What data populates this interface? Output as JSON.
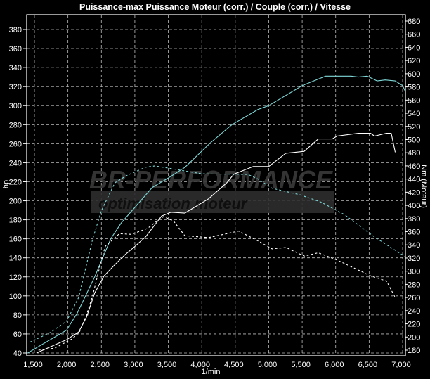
{
  "chart_data": {
    "type": "line",
    "title": "Puissance-max Puissance Moteur (corr.) / Couple (corr.) / Vitesse",
    "xlabel": "1/min",
    "ylabel": "hp",
    "y2label": "Nm (Moteur)",
    "xlim": [
      1500,
      7000
    ],
    "ylim": [
      40,
      380
    ],
    "y2lim": [
      180,
      680
    ],
    "grid": true,
    "x_ticks": [
      "1,500",
      "2,000",
      "2,500",
      "3,000",
      "3,500",
      "4,000",
      "4,500",
      "5,000",
      "5,500",
      "6,000",
      "6,500",
      "7,000"
    ],
    "y_ticks": [
      "40",
      "60",
      "80",
      "100",
      "120",
      "140",
      "160",
      "180",
      "200",
      "220",
      "240",
      "260",
      "280",
      "300",
      "320",
      "340",
      "360",
      "380"
    ],
    "y2_ticks": [
      "180",
      "200",
      "220",
      "240",
      "260",
      "280",
      "300",
      "320",
      "340",
      "360",
      "380",
      "400",
      "420",
      "440",
      "460",
      "480",
      "500",
      "520",
      "540",
      "560",
      "580",
      "600",
      "620",
      "640",
      "660",
      "680"
    ],
    "colors": {
      "cyan": "#7fd8d8",
      "white": "#ffffff"
    },
    "series": [
      {
        "axis": "left",
        "color": "cyan",
        "style": "solid",
        "x": [
          1400,
          1615,
          1980,
          2140,
          2400,
          2640,
          2800,
          3260,
          3500,
          3745,
          4130,
          4450,
          4840,
          5000,
          5500,
          5850,
          6230,
          6340,
          6470,
          6620,
          6740,
          6890,
          7000,
          7040
        ],
        "y": [
          40,
          49,
          64,
          82,
          120,
          160,
          177,
          214,
          224,
          235,
          261,
          280,
          296,
          300,
          321,
          331,
          331,
          330,
          331,
          326,
          327,
          326,
          321,
          315
        ]
      },
      {
        "axis": "left",
        "color": "white",
        "style": "solid",
        "x": [
          1530,
          1980,
          2160,
          2280,
          2400,
          2540,
          2690,
          2850,
          3000,
          3160,
          3400,
          3540,
          3745,
          4100,
          4375,
          4480,
          4770,
          5000,
          5255,
          5530,
          5740,
          5950,
          6020,
          6340,
          6520,
          6580,
          6760,
          6830,
          6890
        ],
        "y": [
          40,
          54,
          62,
          78,
          103,
          121,
          132,
          143,
          152,
          162,
          184,
          188,
          187,
          202,
          219,
          228,
          236,
          236,
          250,
          252,
          265,
          265,
          268,
          271,
          271,
          268,
          271,
          271,
          251
        ]
      },
      {
        "axis": "right",
        "color": "cyan",
        "style": "dashed",
        "x": [
          1430,
          1740,
          1980,
          2160,
          2370,
          2500,
          2700,
          2870,
          3160,
          3300,
          3540,
          4000,
          4690,
          4840,
          5050,
          5470,
          5780,
          6130,
          6580,
          7040
        ],
        "y": [
          192,
          207,
          224,
          260,
          349,
          392,
          434,
          445,
          458,
          460,
          456,
          448,
          447,
          440,
          426,
          416,
          405,
          386,
          352,
          322
        ]
      },
      {
        "axis": "right",
        "color": "white",
        "style": "dashed",
        "x": [
          1560,
          1800,
          2060,
          2170,
          2280,
          2370,
          2500,
          2560,
          2770,
          2950,
          3190,
          3330,
          3430,
          3580,
          3745,
          4100,
          4375,
          4550,
          4840,
          5050,
          5260,
          5530,
          5740,
          6020,
          6520,
          6760,
          6890
        ],
        "y": [
          180,
          183,
          197,
          207,
          234,
          263,
          317,
          338,
          357,
          356,
          365,
          376,
          383,
          376,
          354,
          351,
          357,
          361,
          346,
          334,
          336,
          323,
          328,
          317,
          293,
          285,
          260
        ]
      }
    ]
  },
  "watermark": {
    "brand": "BR-PERFORMANCE",
    "tagline": "optimisation moteur"
  }
}
